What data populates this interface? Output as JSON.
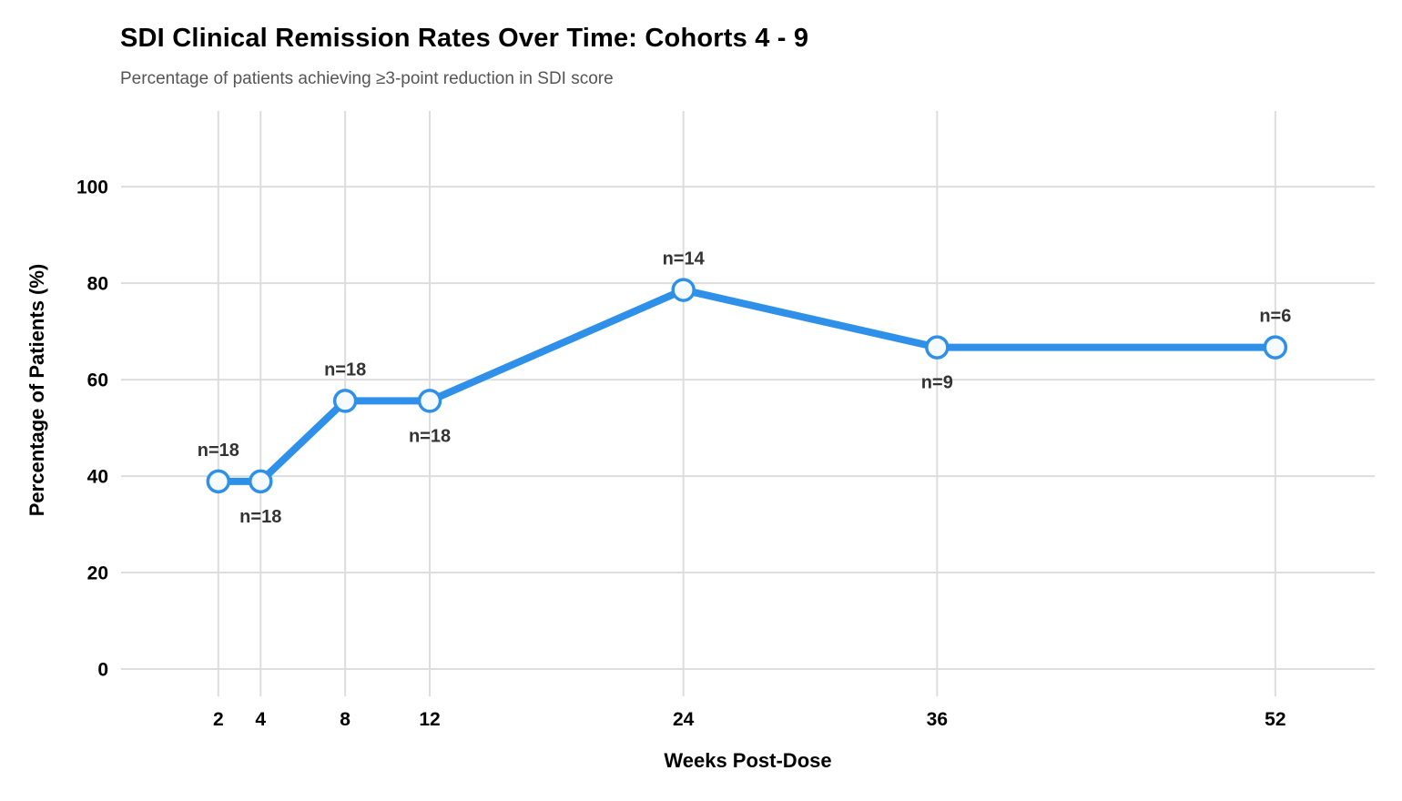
{
  "header": {
    "title": "SDI Clinical Remission Rates Over Time: Cohorts 4 - 9",
    "subtitle": "Percentage of patients achieving ≥3-point reduction in SDI score"
  },
  "chart_data": {
    "type": "line",
    "title": "SDI Clinical Remission Rates Over Time: Cohorts 4 - 9",
    "subtitle": "Percentage of patients achieving ≥3-point reduction in SDI score",
    "xlabel": "Weeks Post-Dose",
    "ylabel": "Percentage of Patients (%)",
    "x": [
      2,
      4,
      8,
      12,
      24,
      36,
      52
    ],
    "values": [
      38.9,
      38.9,
      55.6,
      55.6,
      78.6,
      66.7,
      66.7
    ],
    "point_labels": [
      {
        "text": "n=18",
        "position": "above"
      },
      {
        "text": "n=18",
        "position": "below"
      },
      {
        "text": "n=18",
        "position": "above"
      },
      {
        "text": "n=18",
        "position": "below"
      },
      {
        "text": "n=14",
        "position": "above"
      },
      {
        "text": "n=9",
        "position": "below"
      },
      {
        "text": "n=6",
        "position": "above"
      }
    ],
    "x_ticks": [
      2,
      4,
      8,
      12,
      24,
      36,
      52
    ],
    "y_ticks": [
      0,
      20,
      40,
      60,
      80,
      100
    ],
    "xlim": [
      -2.6,
      56.7
    ],
    "ylim": [
      0,
      115.7
    ],
    "grid": true,
    "legend": "none",
    "colors": {
      "line": "#2E90E8",
      "marker_fill": "#F4FAFE",
      "grid": "#DDDDDD",
      "tick_label": "#000000",
      "point_label": "#333333",
      "axis_title": "#000000"
    }
  }
}
